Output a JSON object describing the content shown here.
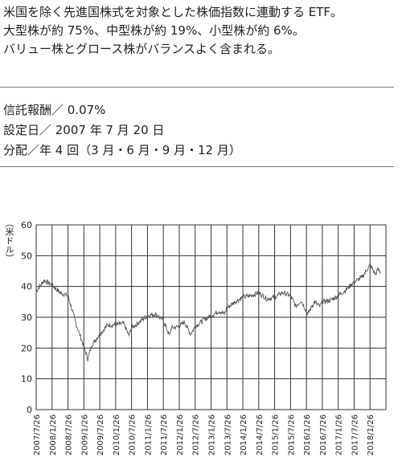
{
  "description": {
    "line1": "米国を除く先進国株式を対象とした株価指数に連動する ETF。",
    "line2": "大型株が約 75%、中型株が約 19%、小型株が約 6%。",
    "line3": "バリュー株とグロース株がバランスよく含まれる。"
  },
  "info": {
    "fee": "信託報酬／ 0.07%",
    "established": "設定日／ 2007 年 7 月 20 日",
    "distribution": "分配／年 4 回（3 月・6 月・9 月・12 月）"
  },
  "chart_data": {
    "type": "line",
    "ylabel": "（米ドル）",
    "ylim": [
      0,
      60
    ],
    "yticks": [
      0,
      10,
      20,
      30,
      40,
      50,
      60
    ],
    "xticks": [
      "2007/7/26",
      "2008/1/26",
      "2008/7/26",
      "2009/1/26",
      "2009/7/26",
      "2010/1/26",
      "2010/7/26",
      "2011/1/26",
      "2011/7/26",
      "2012/1/26",
      "2012/7/26",
      "2013/1/26",
      "2013/7/26",
      "2014/1/26",
      "2014/7/26",
      "2015/1/26",
      "2015/7/26",
      "2016/1/26",
      "2016/7/26",
      "2017/1/26",
      "2017/7/26",
      "2018/1/26"
    ],
    "grid": true,
    "line_color": "#555555",
    "series": [
      {
        "x": [
          "2007/7/26",
          "2007/10/26",
          "2008/1/26",
          "2008/4/26",
          "2008/7/26",
          "2008/10/26",
          "2009/1/26",
          "2009/3/9",
          "2009/4/26",
          "2009/7/26",
          "2009/10/26",
          "2010/1/26",
          "2010/4/26",
          "2010/6/26",
          "2010/7/26",
          "2010/10/26",
          "2011/1/26",
          "2011/4/26",
          "2011/7/26",
          "2011/10/4",
          "2011/10/26",
          "2012/1/26",
          "2012/3/26",
          "2012/6/4",
          "2012/7/26",
          "2012/10/26",
          "2013/1/26",
          "2013/4/26",
          "2013/6/26",
          "2013/7/26",
          "2013/10/26",
          "2014/1/26",
          "2014/4/26",
          "2014/7/26",
          "2014/10/26",
          "2015/1/26",
          "2015/4/26",
          "2015/7/26",
          "2015/9/26",
          "2015/11/26",
          "2016/1/26",
          "2016/2/11",
          "2016/4/26",
          "2016/6/27",
          "2016/7/26",
          "2016/10/26",
          "2017/1/26",
          "2017/4/26",
          "2017/7/26",
          "2017/10/26",
          "2018/1/26",
          "2018/3/26",
          "2018/4/26",
          "2018/5/26"
        ],
        "values": [
          38.5,
          42.0,
          40.5,
          38.0,
          37.0,
          28.0,
          20.5,
          16.5,
          21.0,
          24.5,
          27.5,
          27.5,
          28.0,
          24.0,
          26.5,
          28.5,
          30.5,
          31.0,
          29.0,
          24.0,
          26.5,
          27.0,
          28.5,
          24.5,
          27.0,
          29.0,
          30.5,
          32.0,
          31.0,
          33.0,
          35.0,
          36.5,
          37.0,
          38.0,
          36.0,
          36.5,
          38.0,
          37.0,
          33.5,
          35.5,
          32.0,
          31.0,
          35.0,
          33.5,
          35.0,
          35.5,
          37.0,
          39.0,
          41.5,
          43.0,
          47.0,
          44.0,
          45.5,
          44.5
        ]
      }
    ]
  }
}
